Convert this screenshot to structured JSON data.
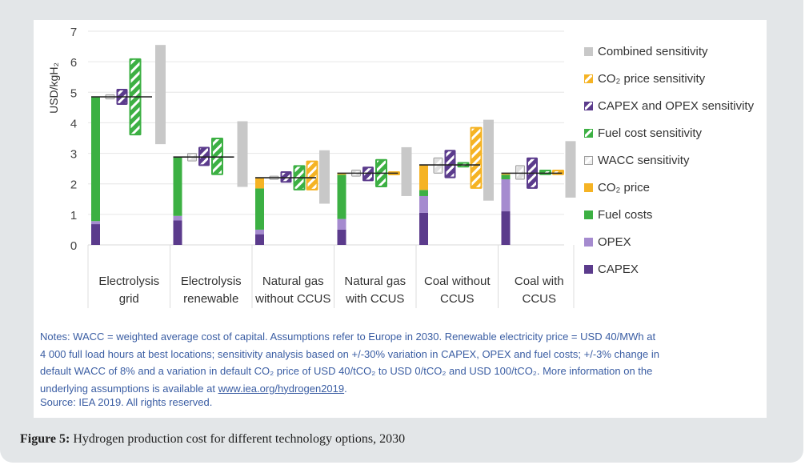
{
  "caption": {
    "label": "Figure 5:",
    "text": " Hydrogen production cost for different technology options, 2030"
  },
  "notes": {
    "line1": "Notes: WACC = weighted average cost of capital. Assumptions refer to Europe in 2030. Renewable electricity price = USD 40/MWh at",
    "line2": "4 000 full load hours at best locations; sensitivity analysis based on +/-30% variation in CAPEX, OPEX and fuel costs; +/-3% change in",
    "line3": "default WACC of 8% and a variation in default CO₂ price of USD 40/tCO₂ to USD 0/tCO₂ and USD 100/tCO₂. More information on the",
    "line4_prefix": "underlying assumptions is available at ",
    "link": "www.iea.org/hydrogen2019",
    "line4_suffix": ".",
    "source": "Source: IEA 2019. All rights reserved."
  },
  "colors": {
    "capex": "#5b3b8c",
    "opex": "#a58bcf",
    "fuel": "#3cb043",
    "co2": "#f5b324",
    "wacc": "#bdbdbd",
    "combined": "#c8c8c8",
    "grid": "#e6e6e6",
    "total_line": "#222222"
  },
  "chart_data": {
    "type": "bar",
    "subtype": "stacked bar with sensitivity ranges",
    "title": "",
    "ylabel": "USD/kgH₂",
    "xlabel": "",
    "ylim": [
      0,
      7
    ],
    "yticks": [
      "0",
      "1",
      "2",
      "3",
      "4",
      "5",
      "6",
      "7"
    ],
    "grid": true,
    "legend_position": "right",
    "categories": [
      [
        "Electrolysis",
        "grid"
      ],
      [
        "Electrolysis",
        "renewable"
      ],
      [
        "Natural gas",
        "without CCUS"
      ],
      [
        "Natural gas",
        "with CCUS"
      ],
      [
        "Coal without",
        "CCUS"
      ],
      [
        "Coal with",
        "CCUS"
      ]
    ],
    "stack_series": [
      {
        "name": "CAPEX",
        "key": "capex",
        "values": [
          0.68,
          0.8,
          0.35,
          0.5,
          1.05,
          1.1
        ]
      },
      {
        "name": "OPEX",
        "key": "opex",
        "values": [
          0.1,
          0.15,
          0.15,
          0.35,
          0.55,
          1.05
        ]
      },
      {
        "name": "Fuel costs",
        "key": "fuel",
        "values": [
          4.07,
          1.93,
          1.35,
          1.45,
          0.2,
          0.15
        ]
      },
      {
        "name": "CO₂ price",
        "key": "co2",
        "values": [
          0,
          0,
          0.35,
          0.05,
          0.82,
          0.05
        ]
      }
    ],
    "totals": [
      4.85,
      2.88,
      2.2,
      2.35,
      2.62,
      2.35
    ],
    "sensitivity_series": [
      {
        "name": "WACC sensitivity",
        "key": "wacc",
        "ranges": [
          [
            4.78,
            4.92
          ],
          [
            2.75,
            3.0
          ],
          [
            2.15,
            2.25
          ],
          [
            2.25,
            2.45
          ],
          [
            2.35,
            2.85
          ],
          [
            2.15,
            2.6
          ]
        ]
      },
      {
        "name": "CAPEX and OPEX sensitivity",
        "key": "capex",
        "ranges": [
          [
            4.6,
            5.1
          ],
          [
            2.6,
            3.2
          ],
          [
            2.05,
            2.4
          ],
          [
            2.1,
            2.55
          ],
          [
            2.2,
            3.1
          ],
          [
            1.85,
            2.85
          ]
        ]
      },
      {
        "name": "Fuel cost sensitivity",
        "key": "fuel",
        "ranges": [
          [
            3.6,
            6.1
          ],
          [
            2.3,
            3.5
          ],
          [
            1.8,
            2.6
          ],
          [
            1.9,
            2.8
          ],
          [
            2.55,
            2.7
          ],
          [
            2.3,
            2.45
          ]
        ]
      },
      {
        "name": "CO₂ price sensitivity",
        "key": "co2",
        "ranges": [
          null,
          null,
          [
            1.8,
            2.75
          ],
          [
            2.3,
            2.4
          ],
          [
            1.85,
            3.85
          ],
          [
            2.3,
            2.45
          ]
        ]
      },
      {
        "name": "Combined sensitivity",
        "key": "combined",
        "ranges": [
          [
            3.3,
            6.55
          ],
          [
            1.9,
            4.05
          ],
          [
            1.35,
            3.1
          ],
          [
            1.6,
            3.2
          ],
          [
            1.45,
            4.1
          ],
          [
            1.55,
            3.4
          ]
        ]
      }
    ],
    "legend": [
      {
        "label": "Combined sensitivity",
        "key": "combined",
        "style": "solid"
      },
      {
        "label": "CO₂ price sensitivity",
        "key": "co2",
        "style": "hatch"
      },
      {
        "label": "CAPEX and OPEX sensitivity",
        "key": "capex",
        "style": "hatch"
      },
      {
        "label": "Fuel cost sensitivity",
        "key": "fuel",
        "style": "hatch"
      },
      {
        "label": "WACC sensitivity",
        "key": "wacc",
        "style": "hatch"
      },
      {
        "label": "CO₂ price",
        "key": "co2",
        "style": "solid"
      },
      {
        "label": "Fuel costs",
        "key": "fuel",
        "style": "solid"
      },
      {
        "label": "OPEX",
        "key": "opex",
        "style": "solid"
      },
      {
        "label": "CAPEX",
        "key": "capex",
        "style": "solid"
      }
    ]
  }
}
